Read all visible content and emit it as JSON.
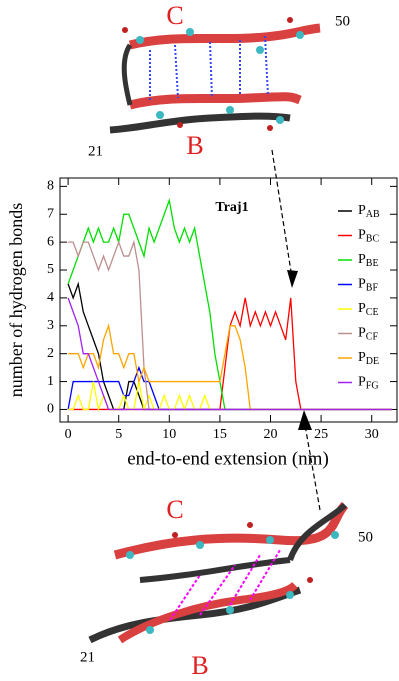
{
  "chart_data": {
    "type": "line",
    "annotation": "Traj1",
    "x_label": "end-to-end extension (nm)",
    "y_label": "number of hydrogen bonds",
    "x": [
      0,
      0.5,
      1,
      1.5,
      2,
      2.5,
      3,
      3.5,
      4,
      4.5,
      5,
      5.5,
      6,
      6.5,
      7,
      7.5,
      8,
      8.5,
      9,
      9.5,
      10,
      10.5,
      11,
      11.5,
      12,
      12.5,
      13,
      13.5,
      14,
      14.5,
      15,
      15.5,
      16,
      16.5,
      17,
      17.5,
      18,
      18.5,
      19,
      19.5,
      20,
      20.5,
      21,
      21.5,
      22,
      22.5,
      23,
      23.5,
      24,
      24.5,
      25,
      25.5,
      26,
      26.5,
      27,
      27.5,
      28,
      28.5,
      29,
      29.5,
      30,
      30.5,
      31,
      31.5,
      32
    ],
    "xlim": [
      -0.8,
      32.5
    ],
    "xticks": [
      0,
      5,
      10,
      15,
      20,
      25,
      30
    ],
    "ylim": [
      -0.45,
      8.3
    ],
    "yticks": [
      0,
      1,
      2,
      3,
      4,
      5,
      6,
      7,
      8
    ],
    "legend": "upper right",
    "series": [
      {
        "name": "PAB",
        "color": "#000000",
        "values": [
          4.5,
          4,
          4.5,
          3.5,
          3,
          2.5,
          2,
          1,
          0.5,
          0,
          0,
          0,
          1,
          1,
          0.5,
          0,
          0,
          0,
          0,
          0,
          0,
          0,
          0,
          0,
          0,
          0,
          0,
          0,
          0,
          0,
          0,
          0,
          0,
          0,
          0,
          0,
          0,
          0,
          0,
          0,
          0,
          0,
          0,
          0,
          0,
          0,
          0,
          0,
          0,
          0,
          0,
          0,
          0,
          0,
          0,
          0,
          0,
          0,
          0,
          0,
          0,
          0,
          0,
          0,
          0
        ]
      },
      {
        "name": "PBC",
        "color": "#ff0000",
        "values": [
          0,
          0,
          0,
          0,
          0,
          0,
          0,
          0,
          0,
          0,
          0,
          0,
          0,
          0,
          0,
          0,
          0,
          0,
          0,
          0,
          0,
          0,
          0,
          0,
          0,
          0,
          0,
          0,
          0,
          0,
          0,
          1.5,
          3,
          3.5,
          3,
          4,
          3,
          3.5,
          3,
          3.5,
          3,
          3.5,
          3,
          2.5,
          4,
          1,
          0,
          0,
          0,
          0,
          0,
          0,
          0,
          0,
          0,
          0,
          0,
          0,
          0,
          0,
          0,
          0,
          0,
          0,
          0
        ]
      },
      {
        "name": "PBE",
        "color": "#00e000",
        "values": [
          4.5,
          5,
          5.5,
          6,
          6.5,
          6,
          6.5,
          6,
          6,
          6.5,
          6,
          7,
          7,
          6.5,
          6,
          5.5,
          6.5,
          6,
          6.5,
          7,
          7.5,
          6.5,
          6,
          6.5,
          6,
          6.5,
          5.5,
          4.5,
          3.5,
          2,
          1,
          0,
          0,
          0,
          0,
          0,
          0,
          0,
          0,
          0,
          0,
          0,
          0,
          0,
          0,
          0,
          0,
          0,
          0,
          0,
          0,
          0,
          0,
          0,
          0,
          0,
          0,
          0,
          0,
          0,
          0,
          0,
          0,
          0,
          0
        ]
      },
      {
        "name": "PBF",
        "color": "#0000ff",
        "values": [
          0,
          1,
          1,
          1,
          1,
          1,
          1,
          1,
          1,
          1,
          1,
          0.5,
          0.5,
          1,
          1.5,
          1,
          1,
          0.5,
          0,
          0,
          0,
          0,
          0,
          0,
          0,
          0,
          0,
          0,
          0,
          0,
          0,
          0,
          0,
          0,
          0,
          0,
          0,
          0,
          0,
          0,
          0,
          0,
          0,
          0,
          0,
          0,
          0,
          0,
          0,
          0,
          0,
          0,
          0,
          0,
          0,
          0,
          0,
          0,
          0,
          0,
          0,
          0,
          0,
          0,
          0
        ]
      },
      {
        "name": "PCE",
        "color": "#ffff00",
        "values": [
          0,
          0,
          0.5,
          0,
          0,
          1,
          0,
          0.5,
          0,
          0,
          0,
          0.5,
          0,
          0,
          1,
          0,
          0.5,
          0,
          0,
          0.5,
          0,
          0,
          0.5,
          0,
          0.5,
          0,
          0,
          0.5,
          0,
          0,
          0,
          0,
          0,
          0,
          0,
          0,
          0,
          0,
          0,
          0,
          0,
          0,
          0,
          0,
          0,
          0,
          0,
          0,
          0,
          0,
          0,
          0,
          0,
          0,
          0,
          0,
          0,
          0,
          0,
          0,
          0,
          0,
          0,
          0,
          0
        ]
      },
      {
        "name": "PCF",
        "color": "#bc8f8f",
        "values": [
          6,
          6,
          5.5,
          6,
          6,
          5.5,
          5,
          5.5,
          5,
          5.5,
          6,
          5.5,
          5.5,
          6,
          5,
          1.5,
          0,
          0,
          0,
          0,
          0,
          0,
          0,
          0,
          0,
          0,
          0,
          0,
          0,
          0,
          0,
          0,
          0,
          0,
          0,
          0,
          0,
          0,
          0,
          0,
          0,
          0,
          0,
          0,
          0,
          0,
          0,
          0,
          0,
          0,
          0,
          0,
          0,
          0,
          0,
          0,
          0,
          0,
          0,
          0,
          0,
          0,
          0,
          0,
          0
        ]
      },
      {
        "name": "PDE",
        "color": "#ffa500",
        "values": [
          2,
          2,
          2,
          1.5,
          2,
          2,
          1.5,
          2.5,
          3,
          2,
          2,
          1.5,
          2,
          2,
          1,
          1.5,
          1,
          1,
          1,
          1,
          1,
          1,
          1,
          1,
          1,
          1,
          1,
          1,
          1,
          1,
          1,
          2,
          3,
          3,
          2.5,
          1.5,
          0,
          0,
          0,
          0,
          0,
          0,
          0,
          0,
          0,
          0,
          0,
          0,
          0,
          0,
          0,
          0,
          0,
          0,
          0,
          0,
          0,
          0,
          0,
          0,
          0,
          0,
          0,
          0,
          0
        ]
      },
      {
        "name": "PFG",
        "color": "#a020f0",
        "values": [
          4,
          3.5,
          3,
          2,
          2,
          1.5,
          1,
          0.5,
          0,
          0,
          0,
          0,
          0,
          0,
          0,
          0,
          0,
          0,
          0,
          0,
          0,
          0,
          0,
          0,
          0,
          0,
          0,
          0,
          0,
          0,
          0,
          0,
          0,
          0,
          0,
          0,
          0,
          0,
          0,
          0,
          0,
          0,
          0,
          0,
          0,
          0,
          0,
          0,
          0,
          0,
          0,
          0,
          0,
          0,
          0,
          0,
          0,
          0,
          0,
          0,
          0,
          0,
          0,
          0,
          0
        ]
      }
    ]
  },
  "structures": [
    {
      "top_label": "C",
      "bottom_label": "B",
      "start_residue": "21",
      "end_residue": "50"
    },
    {
      "top_label": "C",
      "bottom_label": "B",
      "start_residue": "21",
      "end_residue": "50"
    }
  ]
}
